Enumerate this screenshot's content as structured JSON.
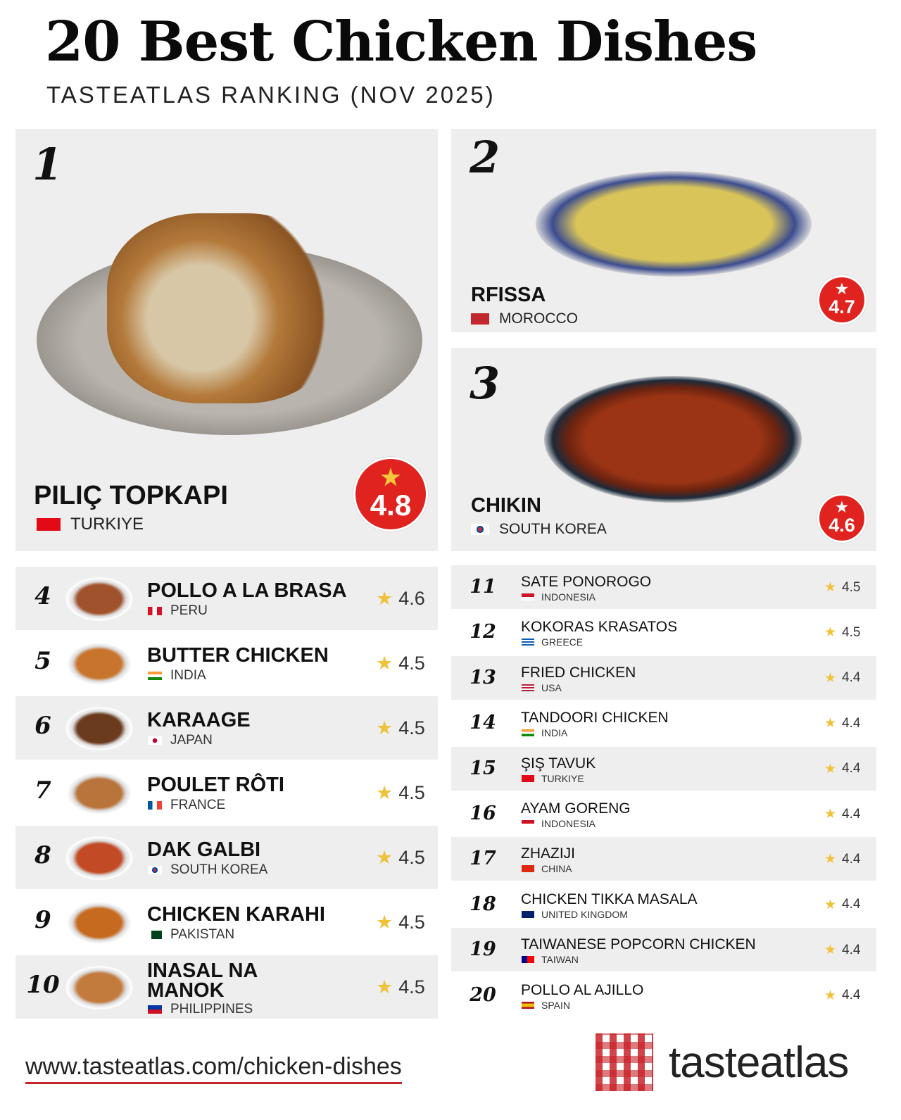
{
  "header": {
    "title": "20 Best Chicken Dishes",
    "subtitle": "TASTEATLAS RANKING (NOV 2025)"
  },
  "colors": {
    "accent": "#e0231f",
    "star": "#f0c23a",
    "row_gray": "#eeeeee",
    "underline": "#c9232a"
  },
  "top3": [
    {
      "rank": "1",
      "dish": "PILIÇ TOPKAPI",
      "country": "TURKIYE",
      "flag": "turkey-flag-icon",
      "rating": "4.8"
    },
    {
      "rank": "2",
      "dish": "RFISSA",
      "country": "MOROCCO",
      "flag": "morocco-flag-icon",
      "rating": "4.7"
    },
    {
      "rank": "3",
      "dish": "CHIKIN",
      "country": "SOUTH KOREA",
      "flag": "south-korea-flag-icon",
      "rating": "4.6"
    }
  ],
  "left_list": [
    {
      "rank": "4",
      "dish": "POLLO A LA BRASA",
      "country": "PERU",
      "flag": "peru",
      "rating": "4.6"
    },
    {
      "rank": "5",
      "dish": "BUTTER CHICKEN",
      "country": "INDIA",
      "flag": "india",
      "rating": "4.5"
    },
    {
      "rank": "6",
      "dish": "KARAAGE",
      "country": "JAPAN",
      "flag": "japan",
      "rating": "4.5"
    },
    {
      "rank": "7",
      "dish": "POULET RÔTI",
      "country": "FRANCE",
      "flag": "france",
      "rating": "4.5"
    },
    {
      "rank": "8",
      "dish": "DAK GALBI",
      "country": "SOUTH KOREA",
      "flag": "korea",
      "rating": "4.5"
    },
    {
      "rank": "9",
      "dish": "CHICKEN KARAHI",
      "country": "PAKISTAN",
      "flag": "pakistan",
      "rating": "4.5"
    },
    {
      "rank": "10",
      "dish": "INASAL NA MANOK",
      "country": "PHILIPPINES",
      "flag": "philippines",
      "rating": "4.5"
    }
  ],
  "right_list": [
    {
      "rank": "11",
      "dish": "SATE PONOROGO",
      "country": "INDONESIA",
      "flag": "indonesia",
      "rating": "4.5"
    },
    {
      "rank": "12",
      "dish": "KOKORAS KRASATOS",
      "country": "GREECE",
      "flag": "greece",
      "rating": "4.5"
    },
    {
      "rank": "13",
      "dish": "FRIED CHICKEN",
      "country": "USA",
      "flag": "usa",
      "rating": "4.4"
    },
    {
      "rank": "14",
      "dish": "TANDOORI CHICKEN",
      "country": "INDIA",
      "flag": "india",
      "rating": "4.4"
    },
    {
      "rank": "15",
      "dish": "ŞIŞ TAVUK",
      "country": "TURKIYE",
      "flag": "turkey",
      "rating": "4.4"
    },
    {
      "rank": "16",
      "dish": "AYAM GORENG",
      "country": "INDONESIA",
      "flag": "indonesia",
      "rating": "4.4"
    },
    {
      "rank": "17",
      "dish": "ZHAZIJI",
      "country": "CHINA",
      "flag": "china",
      "rating": "4.4"
    },
    {
      "rank": "18",
      "dish": "CHICKEN TIKKA MASALA",
      "country": "UNITED KINGDOM",
      "flag": "uk",
      "rating": "4.4"
    },
    {
      "rank": "19",
      "dish": "TAIWANESE POPCORN CHICKEN",
      "country": "TAIWAN",
      "flag": "taiwan",
      "rating": "4.4"
    },
    {
      "rank": "20",
      "dish": "POLLO AL AJILLO",
      "country": "SPAIN",
      "flag": "spain",
      "rating": "4.4"
    }
  ],
  "footer": {
    "url": "www.tasteatlas.com/chicken-dishes",
    "logo": "tasteatlas"
  }
}
